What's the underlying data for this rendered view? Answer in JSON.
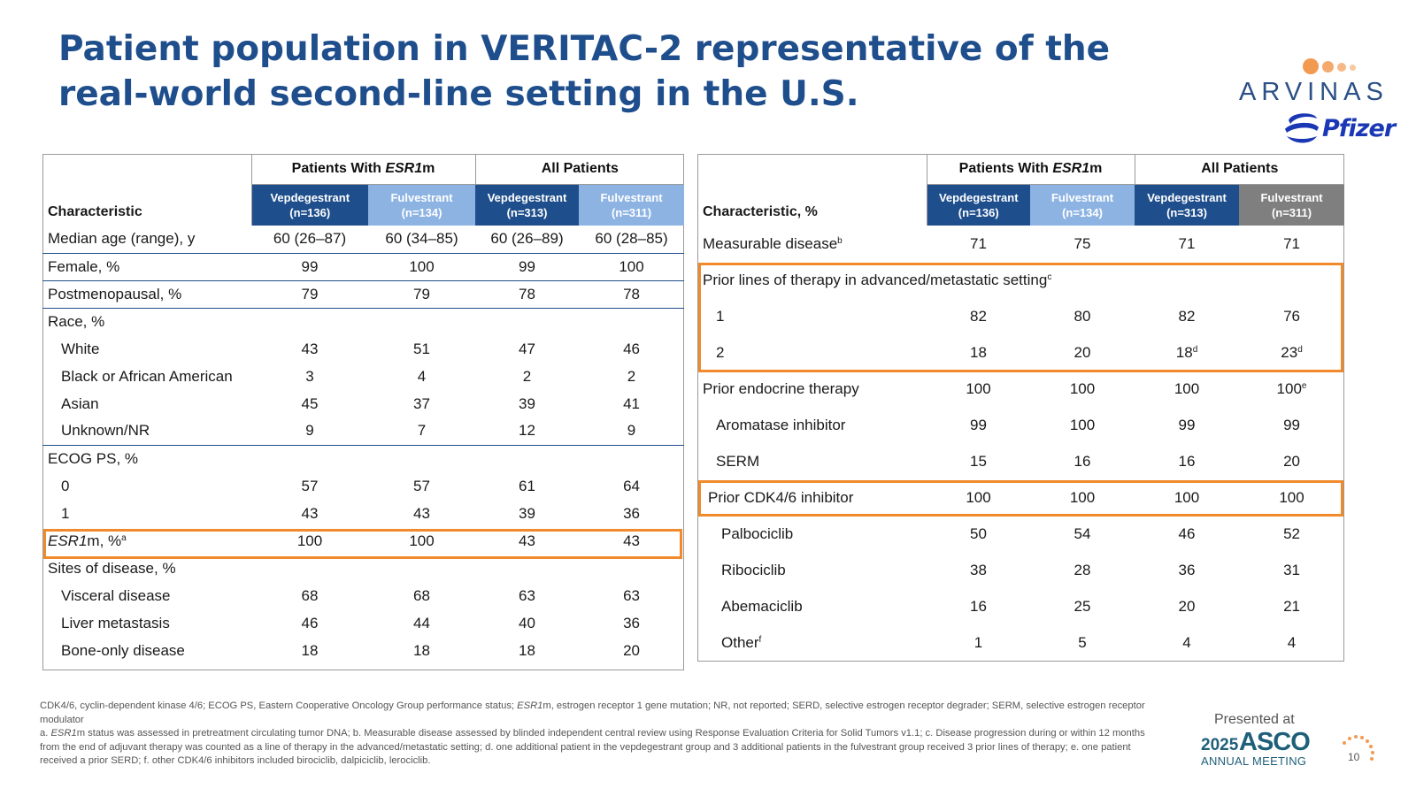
{
  "title": "Patient population in VERITAC-2 representative of the real-world second-line setting in the U.S.",
  "logos": {
    "arvinas": "ARVINAS",
    "pfizer": "Pfizer"
  },
  "colors": {
    "title": "#1f4e8c",
    "vep_header": "#1f4e8c",
    "ful_header": "#8db3e2",
    "gray_header": "#7f7f7f",
    "highlight": "#f08a2b"
  },
  "left_table": {
    "char_header": "Characteristic",
    "group_esr1_prefix": "Patients With ",
    "group_esr1_italic": "ESR1",
    "group_esr1_suffix": "m",
    "group_all": "All Patients",
    "sub": [
      {
        "name": "Vepdegestrant",
        "n": "(n=136)"
      },
      {
        "name": "Fulvestrant",
        "n": "(n=134)"
      },
      {
        "name": "Vepdegestrant",
        "n": "(n=313)"
      },
      {
        "name": "Fulvestrant",
        "n": "(n=311)"
      }
    ],
    "rows": [
      {
        "label": "Median age (range), y",
        "values": [
          "60 (26–87)",
          "60 (34–85)",
          "60 (26–89)",
          "60 (28–85)"
        ]
      },
      {
        "label": "Female, %",
        "values": [
          "99",
          "100",
          "99",
          "100"
        ]
      },
      {
        "label": "Postmenopausal, %",
        "values": [
          "79",
          "79",
          "78",
          "78"
        ]
      },
      {
        "label": "Race, %",
        "values": [
          "",
          "",
          "",
          ""
        ]
      },
      {
        "label": "White",
        "values": [
          "43",
          "51",
          "47",
          "46"
        ]
      },
      {
        "label": "Black or African American",
        "values": [
          "3",
          "4",
          "2",
          "2"
        ]
      },
      {
        "label": "Asian",
        "values": [
          "45",
          "37",
          "39",
          "41"
        ]
      },
      {
        "label": "Unknown/NR",
        "values": [
          "9",
          "7",
          "12",
          "9"
        ]
      },
      {
        "label": "ECOG PS, %",
        "values": [
          "",
          "",
          "",
          ""
        ]
      },
      {
        "label": "0",
        "values": [
          "57",
          "57",
          "61",
          "64"
        ]
      },
      {
        "label": "1",
        "values": [
          "43",
          "43",
          "39",
          "36"
        ]
      },
      {
        "label_italic": "ESR1",
        "label_rest": "m, %",
        "label_sup": "a",
        "values": [
          "100",
          "100",
          "43",
          "43"
        ]
      },
      {
        "label": "Sites of disease, %",
        "values": [
          "",
          "",
          "",
          ""
        ]
      },
      {
        "label": "Visceral disease",
        "values": [
          "68",
          "68",
          "63",
          "63"
        ]
      },
      {
        "label": "Liver metastasis",
        "values": [
          "46",
          "44",
          "40",
          "36"
        ]
      },
      {
        "label": "Bone-only disease",
        "values": [
          "18",
          "18",
          "18",
          "20"
        ]
      }
    ]
  },
  "right_table": {
    "char_header": "Characteristic, %",
    "group_esr1_prefix": "Patients With ",
    "group_esr1_italic": "ESR1",
    "group_esr1_suffix": "m",
    "group_all": "All Patients",
    "sub": [
      {
        "name": "Vepdegestrant",
        "n": "(n=136)"
      },
      {
        "name": "Fulvestrant",
        "n": "(n=134)"
      },
      {
        "name": "Vepdegestrant",
        "n": "(n=313)"
      },
      {
        "name": "Fulvestrant",
        "n": "(n=311)"
      }
    ],
    "rows": [
      {
        "label": "Measurable disease",
        "label_sup": "b",
        "values": [
          "71",
          "75",
          "71",
          "71"
        ]
      },
      {
        "label": "Prior lines of therapy in advanced/metastatic setting",
        "label_sup": "c",
        "values": [
          "",
          "",
          "",
          ""
        ]
      },
      {
        "label": "1",
        "values": [
          "82",
          "80",
          "82",
          "76"
        ]
      },
      {
        "label": "2",
        "values": [
          "18",
          "20",
          "18",
          "23"
        ],
        "sups": [
          "",
          "",
          "d",
          "d"
        ]
      },
      {
        "label": "Prior endocrine therapy",
        "values": [
          "100",
          "100",
          "100",
          "100"
        ],
        "sups": [
          "",
          "",
          "",
          "e"
        ]
      },
      {
        "label": "Aromatase inhibitor",
        "values": [
          "99",
          "100",
          "99",
          "99"
        ]
      },
      {
        "label": "SERM",
        "values": [
          "15",
          "16",
          "16",
          "20"
        ]
      },
      {
        "label": "Prior CDK4/6 inhibitor",
        "values": [
          "100",
          "100",
          "100",
          "100"
        ]
      },
      {
        "label": "Palbociclib",
        "values": [
          "50",
          "54",
          "46",
          "52"
        ]
      },
      {
        "label": "Ribociclib",
        "values": [
          "38",
          "28",
          "36",
          "31"
        ]
      },
      {
        "label": "Abemaciclib",
        "values": [
          "16",
          "25",
          "20",
          "21"
        ]
      },
      {
        "label": "Other",
        "label_sup": "f",
        "values": [
          "1",
          "5",
          "4",
          "4"
        ]
      }
    ]
  },
  "footnotes": {
    "abbrev_1": "CDK4/6, cyclin-dependent kinase 4/6; ECOG PS, Eastern Cooperative Oncology Group performance status; ",
    "abbrev_italic": "ESR1",
    "abbrev_2": "m, estrogen receptor 1 gene mutation; NR, not reported; SERD, selective estrogen receptor degrader; SERM, selective estrogen receptor modulator",
    "notes_1": "a. ",
    "notes_italic": "ESR1",
    "notes_2": "m status was assessed in pretreatment circulating tumor DNA; b. Measurable disease assessed by blinded independent central review using Response Evaluation Criteria for Solid Tumors v1.1; c. Disease progression during or within 12 months from the end of adjuvant therapy was counted as a line of therapy in the advanced/metastatic setting; d. one additional patient in the vepdegestrant group and 3 additional patients in the fulvestrant group received 3 prior lines of therapy; e. one patient received a prior SERD; f. other CDK4/6 inhibitors included birociclib, dalpiciclib, lerociclib."
  },
  "footer": {
    "presented_at": "Presented at",
    "asco_year": "2025",
    "asco_brand": "ASCO",
    "asco_meeting": "ANNUAL MEETING",
    "page_number": "10"
  }
}
